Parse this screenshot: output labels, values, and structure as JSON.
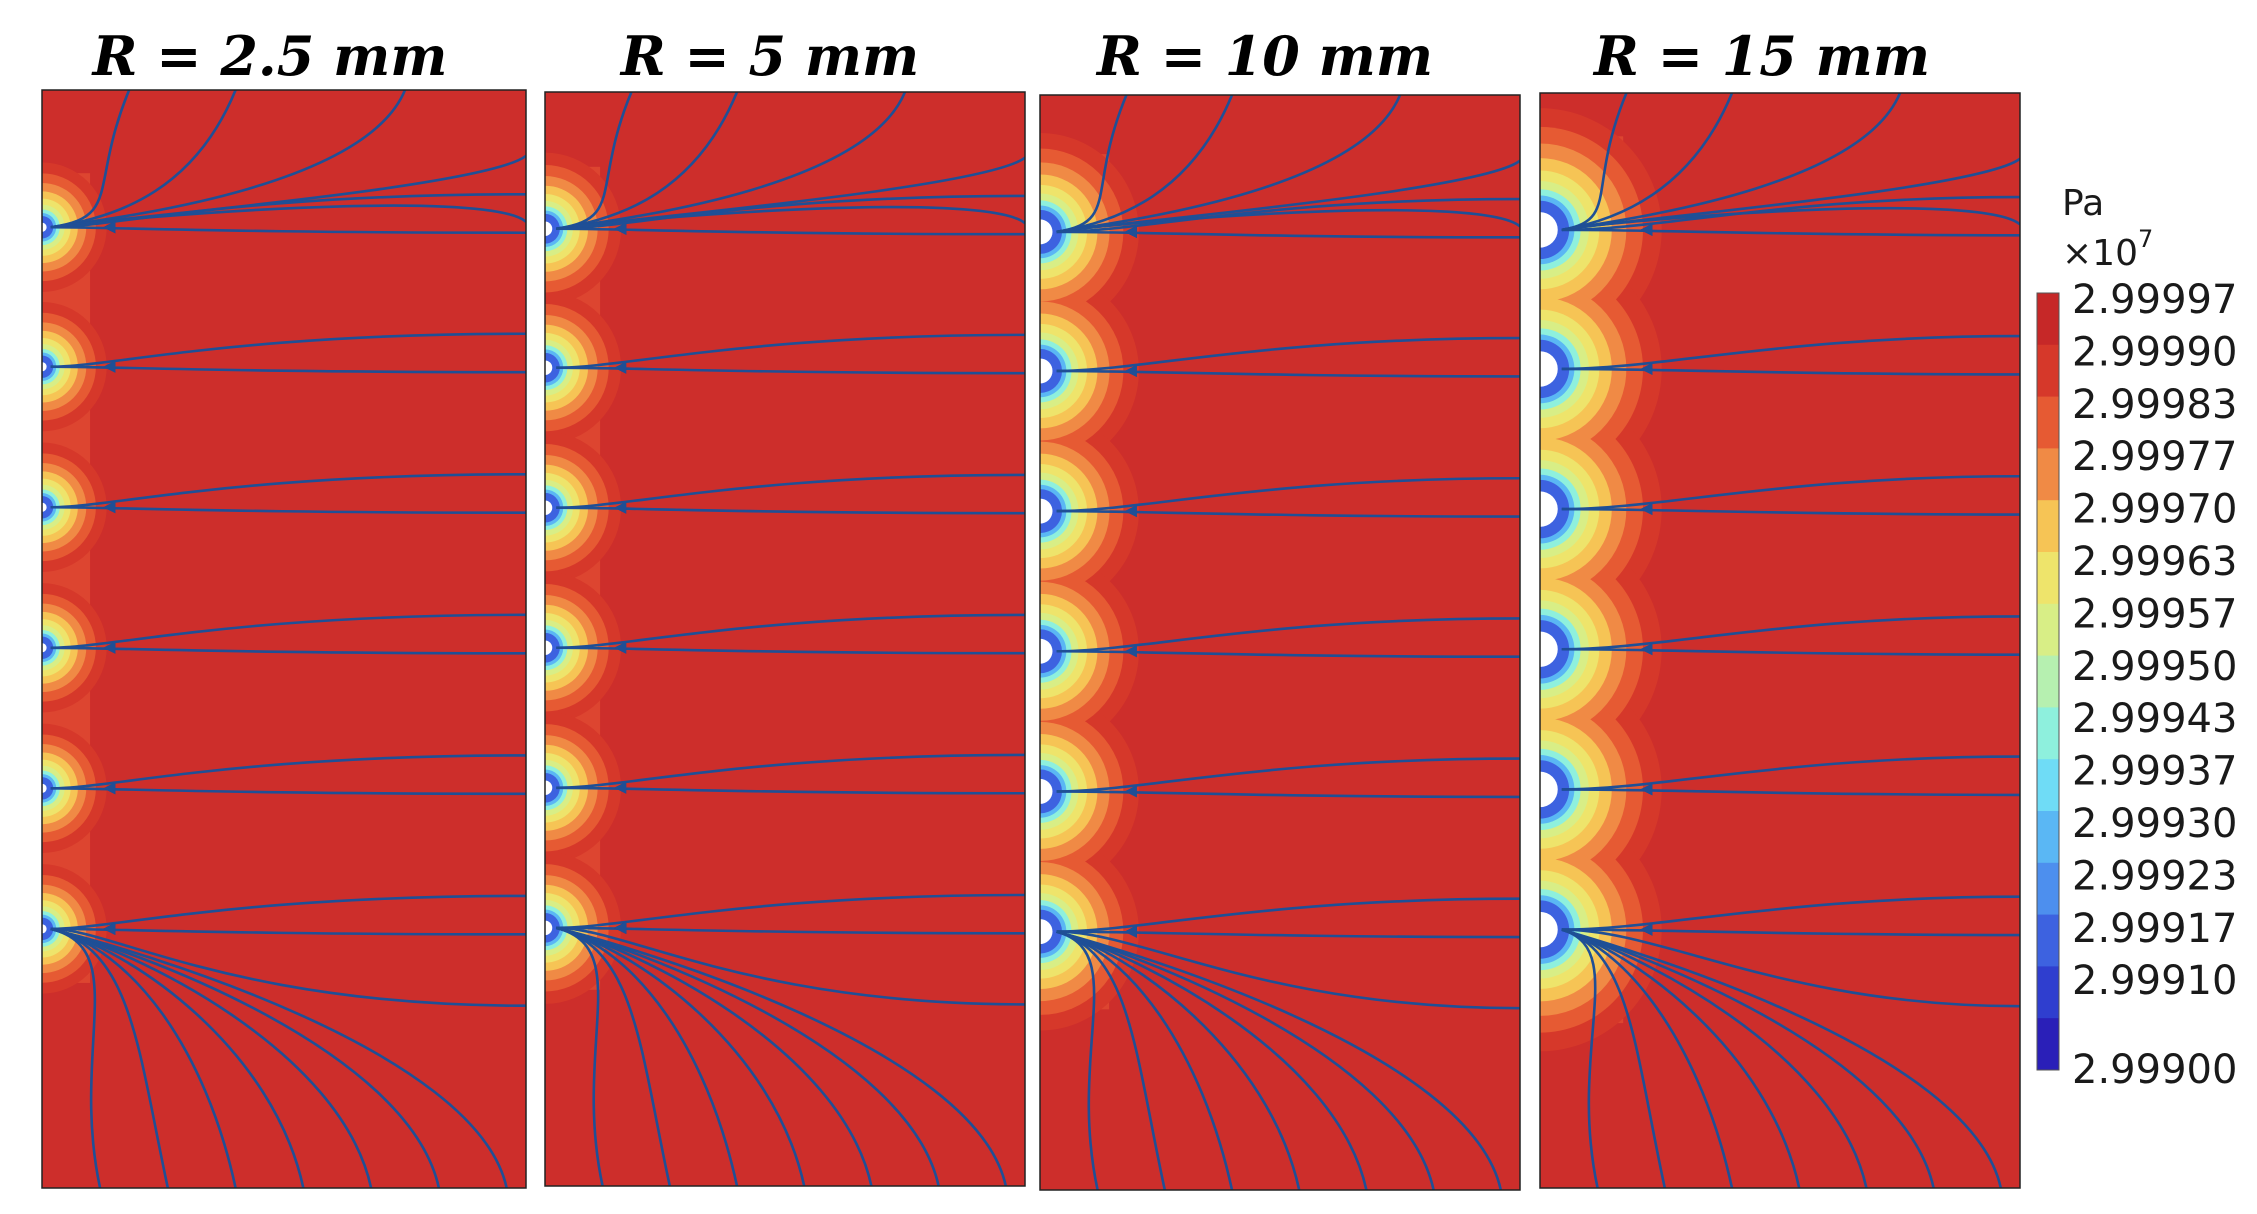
{
  "panels": [
    {
      "title": "R = 2.5 mm",
      "hole_radius_mm": 2.5
    },
    {
      "title": "R = 5 mm",
      "hole_radius_mm": 5
    },
    {
      "title": "R = 10 mm",
      "hole_radius_mm": 10
    },
    {
      "title": "R = 15 mm",
      "hole_radius_mm": 15
    }
  ],
  "colorbar": {
    "unit": "Pa",
    "multiplier": "×10",
    "exponent": "7",
    "ticks": [
      "2.99997",
      "2.99990",
      "2.99983",
      "2.99977",
      "2.99970",
      "2.99963",
      "2.99957",
      "2.99950",
      "2.99943",
      "2.99937",
      "2.99930",
      "2.99923",
      "2.99917",
      "2.99910",
      "2.99900"
    ],
    "colors": [
      "#c62828",
      "#d6382a",
      "#e65a33",
      "#f08a45",
      "#f6c455",
      "#eee46b",
      "#d8ee86",
      "#b6f0b0",
      "#8ef0dd",
      "#6fdcf6",
      "#5ab7f4",
      "#4d8fee",
      "#3d62e0",
      "#2f3ecf",
      "#2a1fb8"
    ]
  },
  "field_colors": {
    "background": "#cd2e2b",
    "streamline": "#1f4f96"
  }
}
